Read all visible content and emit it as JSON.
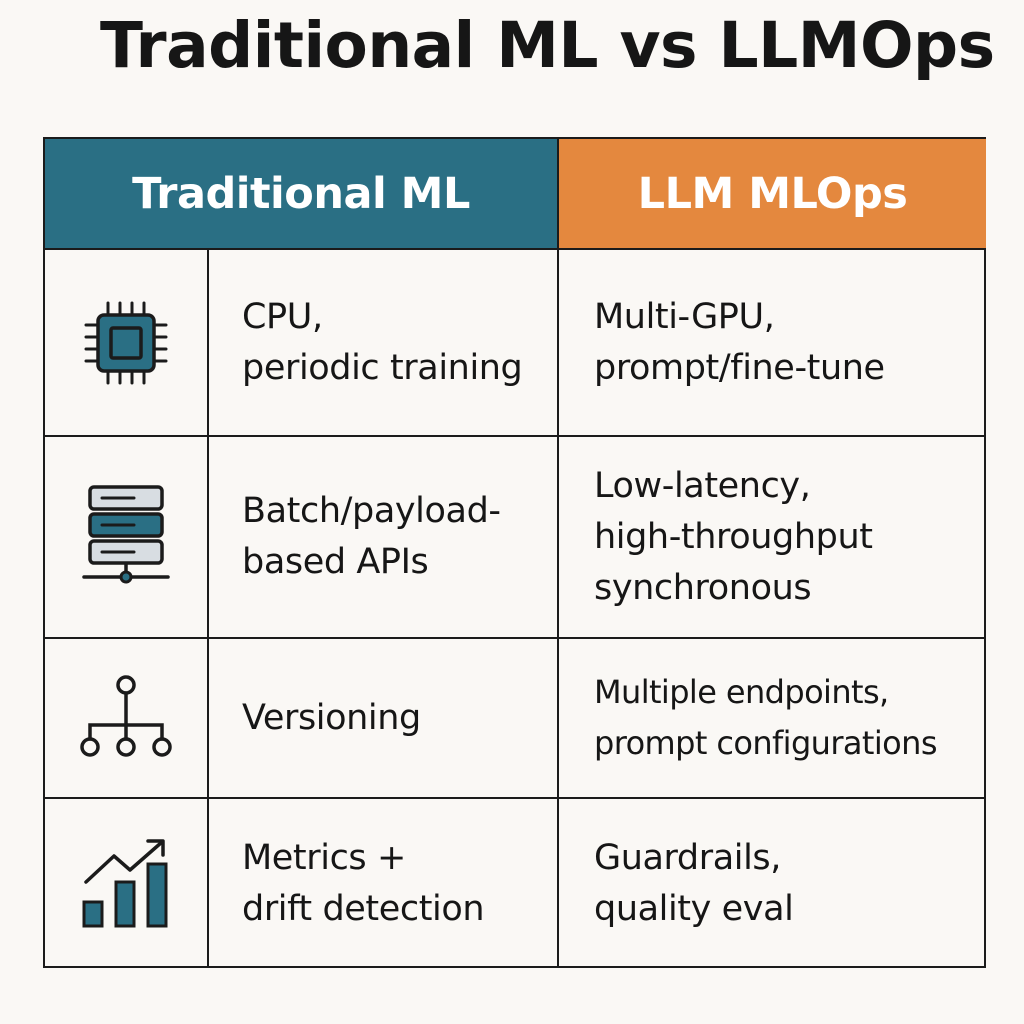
{
  "title": "Traditional ML vs LLMOps",
  "headers": {
    "left": "Traditional ML",
    "right": "LLM MLOps"
  },
  "colors": {
    "traditional_header": "#2a6f84",
    "llm_header": "#e4883e",
    "icon_accent": "#2a6f84",
    "icon_light": "#d8dde2",
    "border": "#1b1b1b",
    "background": "#faf8f5"
  },
  "rows": [
    {
      "icon": "cpu-chip-icon",
      "traditional": [
        "CPU,",
        "periodic training"
      ],
      "llm": [
        "Multi-GPU,",
        "prompt/fine-tune"
      ]
    },
    {
      "icon": "server-stack-icon",
      "traditional": [
        "Batch/payload-",
        "based APIs"
      ],
      "llm": [
        "Low-latency,",
        "high-throughput",
        "synchronous"
      ]
    },
    {
      "icon": "hierarchy-tree-icon",
      "traditional": [
        "Versioning"
      ],
      "llm": [
        "Multiple endpoints,",
        "prompt configurations"
      ]
    },
    {
      "icon": "bar-chart-trend-icon",
      "traditional": [
        "Metrics +",
        "drift detection"
      ],
      "llm": [
        "Guardrails,",
        "quality eval"
      ]
    }
  ]
}
